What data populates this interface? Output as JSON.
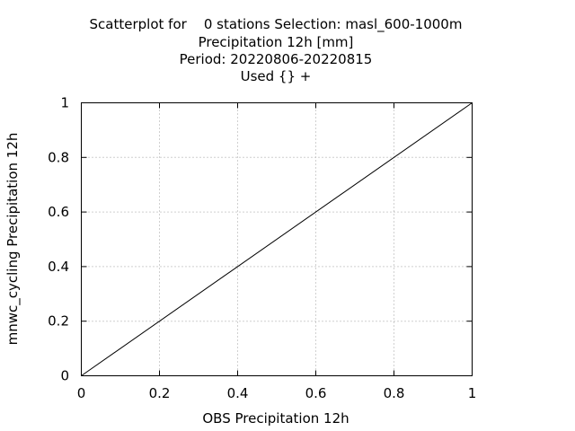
{
  "chart_data": {
    "type": "scatter",
    "title_lines": [
      "Scatterplot for    0 stations Selection: masl_600-1000m",
      "Precipitation 12h [mm]",
      "Period: 20220806-20220815",
      "Used {} +"
    ],
    "xlabel": "OBS Precipitation 12h",
    "ylabel": "mnwc_cycling Precipitation 12h",
    "xlim": [
      0,
      1
    ],
    "ylim": [
      0,
      1
    ],
    "xticks": [
      0,
      0.2,
      0.4,
      0.6,
      0.8,
      1
    ],
    "yticks": [
      0,
      0.2,
      0.4,
      0.6,
      0.8,
      1
    ],
    "xtick_labels": [
      "0",
      "0.2",
      "0.4",
      "0.6",
      "0.8",
      "1"
    ],
    "ytick_labels": [
      "0",
      "0.2",
      "0.4",
      "0.6",
      "0.8",
      "1"
    ],
    "grid": true,
    "points": [],
    "reference_line": {
      "x": [
        0,
        1
      ],
      "y": [
        0,
        1
      ]
    },
    "colors": {
      "line": "#000000",
      "grid": "#a0a0a0",
      "background": "#ffffff"
    }
  }
}
